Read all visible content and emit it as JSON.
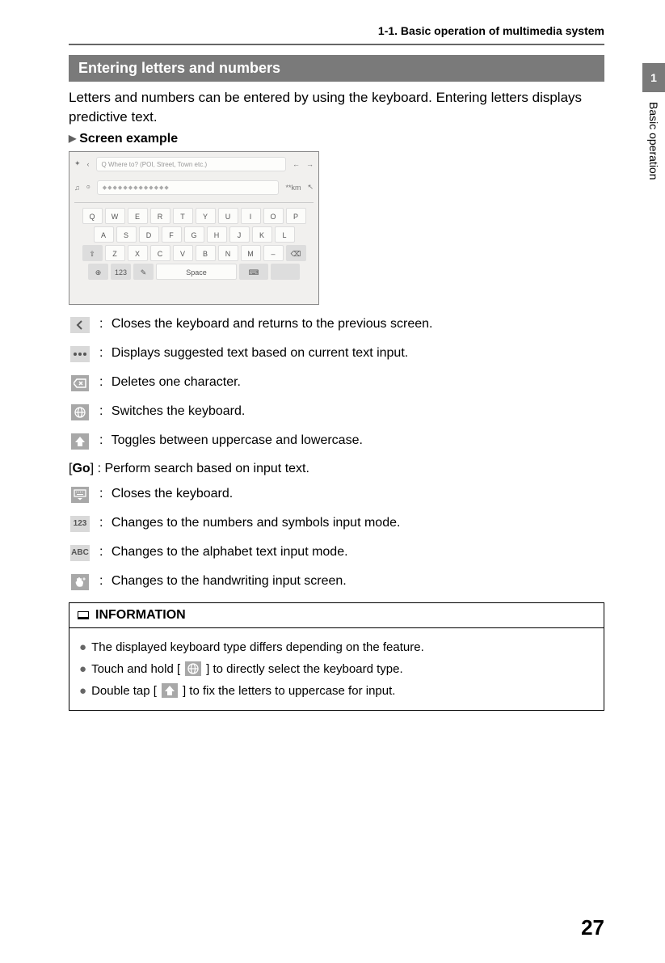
{
  "header": {
    "breadcrumb": "1-1. Basic operation of multimedia system"
  },
  "section": {
    "title": "Entering letters and numbers",
    "intro": "Letters and numbers can be entered by using the keyboard. Entering letters displays predictive text.",
    "subheader": "Screen example"
  },
  "screenshot": {
    "search_placeholder": "Q Where to? (POI, Street, Town etc.)",
    "distance": "**km",
    "row1": [
      "Q",
      "W",
      "E",
      "R",
      "T",
      "Y",
      "U",
      "I",
      "O",
      "P"
    ],
    "row2": [
      "A",
      "S",
      "D",
      "F",
      "G",
      "H",
      "J",
      "K",
      "L"
    ],
    "row3": [
      "Z",
      "X",
      "C",
      "V",
      "B",
      "N",
      "M",
      "–"
    ],
    "space": "Space",
    "mode_key": "123"
  },
  "icons": [
    {
      "name": "back-icon",
      "style": "light",
      "glyph": "chevron-left",
      "desc": "Closes the keyboard and returns to the previous screen."
    },
    {
      "name": "dots-icon",
      "style": "light",
      "glyph": "dots",
      "desc": "Displays suggested text based on current text input."
    },
    {
      "name": "backspace-icon",
      "style": "grey",
      "glyph": "backspace",
      "desc": "Deletes one character."
    },
    {
      "name": "globe-icon",
      "style": "grey",
      "glyph": "globe",
      "desc": "Switches the keyboard."
    },
    {
      "name": "shift-icon",
      "style": "grey",
      "glyph": "shift",
      "desc": "Toggles between uppercase and lowercase."
    }
  ],
  "go_row": {
    "prefix": "[",
    "label": "Go",
    "suffix": "] :  Perform search based on input text."
  },
  "icons2": [
    {
      "name": "collapse-keyboard-icon",
      "style": "grey",
      "glyph": "keyboard-down",
      "desc": "Closes the keyboard."
    },
    {
      "name": "numbers-icon",
      "style": "light",
      "glyph": "text",
      "text": "123",
      "desc": "Changes to the numbers and symbols input mode."
    },
    {
      "name": "abc-icon",
      "style": "light",
      "glyph": "text",
      "text": "ABC",
      "desc": "Changes to the alphabet text input mode."
    },
    {
      "name": "handwriting-icon",
      "style": "grey",
      "glyph": "hand",
      "desc": "Changes to the handwriting input screen."
    }
  ],
  "info": {
    "header": "INFORMATION",
    "items": [
      {
        "parts": [
          {
            "t": "The displayed keyboard type differs depending on the feature."
          }
        ]
      },
      {
        "parts": [
          {
            "t": "Touch and hold [ "
          },
          {
            "icon": "globe"
          },
          {
            "t": " ] to directly select the keyboard type."
          }
        ]
      },
      {
        "parts": [
          {
            "t": "Double tap [ "
          },
          {
            "icon": "shift"
          },
          {
            "t": " ] to fix the letters to uppercase for input."
          }
        ]
      }
    ]
  },
  "sidebar": {
    "chapter_num": "1",
    "chapter_title": "Basic operation"
  },
  "page_number": "27",
  "colors": {
    "section_bg": "#7a7a7a",
    "icon_grey": "#a8a8a8",
    "icon_light": "#d9d9d9"
  }
}
